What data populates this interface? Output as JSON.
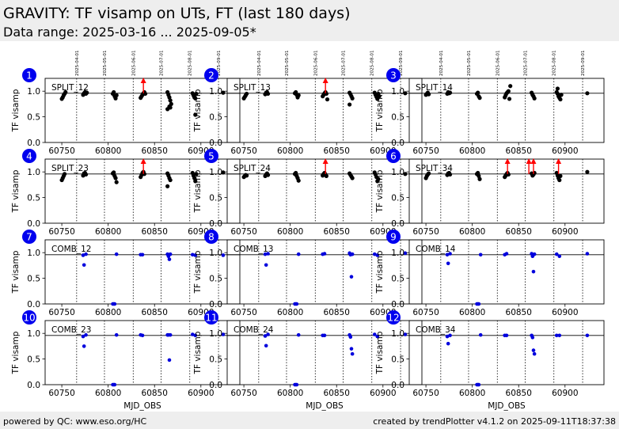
{
  "header": {
    "title": "GRAVITY: TF visamp on UTs, FT (last 180 days)",
    "subtitle": "Data range: 2025-03-16 ... 2025-09-05*"
  },
  "footer": {
    "left": "powered by QC: www.eso.org/HC",
    "right": "created by trendPlotter v4.1.2 on 2025-09-11T18:37:38"
  },
  "colors": {
    "split": "#000000",
    "comb": "#0000dd",
    "badge": "#0000ee",
    "arrow": "#ff0000"
  },
  "chart_data": {
    "type": "scatter",
    "xlabel": "MJD_OBS",
    "ylabel": "TF visamp",
    "xlim": [
      60732,
      60942
    ],
    "ylim": [
      0.0,
      1.25
    ],
    "xticks": [
      60750,
      60800,
      60850,
      60900
    ],
    "yticks": [
      0.0,
      0.5,
      1.0
    ],
    "month_lines": [
      {
        "mjd": 60766,
        "label": "2025-04-01"
      },
      {
        "mjd": 60796,
        "label": "2025-05-01"
      },
      {
        "mjd": 60827,
        "label": "2025-06-01"
      },
      {
        "mjd": 60857,
        "label": "2025-07-01"
      },
      {
        "mjd": 60888,
        "label": "2025-08-01"
      },
      {
        "mjd": 60919,
        "label": "2025-09-01"
      }
    ],
    "reference_line": 0.96,
    "panels": [
      {
        "number": "1",
        "label": "SPLIT_12",
        "kind": "split",
        "x": [
          60750,
          60751,
          60752,
          60753,
          60754,
          60773,
          60774,
          60775,
          60776,
          60777,
          60805,
          60806,
          60807,
          60808,
          60809,
          60835,
          60836,
          60837,
          60838,
          60839,
          60840,
          60864,
          60865,
          60866,
          60867,
          60868,
          60866,
          60864,
          60867,
          60891,
          60892,
          60893,
          60894,
          60895,
          60894,
          60924
        ],
        "y": [
          0.85,
          0.88,
          0.92,
          0.95,
          0.98,
          0.93,
          0.96,
          0.98,
          0.95,
          0.97,
          0.95,
          0.98,
          0.9,
          0.86,
          0.92,
          0.87,
          0.9,
          0.93,
          0.96,
          0.98,
          0.95,
          0.98,
          0.93,
          0.88,
          0.82,
          0.75,
          0.7,
          0.65,
          0.68,
          0.96,
          0.92,
          0.88,
          0.86,
          0.95,
          0.54,
          0.97
        ],
        "arrows": [
          60838
        ]
      },
      {
        "number": "2",
        "label": "SPLIT_13",
        "kind": "split",
        "x": [
          60750,
          60751,
          60752,
          60753,
          60773,
          60774,
          60775,
          60776,
          60805,
          60806,
          60807,
          60808,
          60809,
          60835,
          60836,
          60837,
          60838,
          60839,
          60840,
          60864,
          60865,
          60866,
          60867,
          60864,
          60891,
          60892,
          60893,
          60894,
          60895,
          60896,
          60924
        ],
        "y": [
          0.86,
          0.89,
          0.92,
          0.95,
          0.94,
          0.97,
          0.98,
          0.95,
          0.96,
          0.98,
          0.93,
          0.88,
          0.92,
          0.9,
          0.93,
          0.96,
          0.98,
          0.95,
          0.84,
          0.97,
          0.94,
          0.9,
          0.86,
          0.74,
          0.97,
          0.93,
          0.89,
          0.85,
          0.95,
          0.9,
          0.96
        ],
        "arrows": [
          60838
        ]
      },
      {
        "number": "3",
        "label": "SPLIT_14",
        "kind": "split",
        "x": [
          60750,
          60751,
          60752,
          60753,
          60773,
          60774,
          60775,
          60776,
          60805,
          60806,
          60807,
          60808,
          60835,
          60836,
          60837,
          60838,
          60839,
          60840,
          60841,
          60864,
          60865,
          60866,
          60867,
          60891,
          60892,
          60893,
          60894,
          60895,
          60896,
          60892,
          60924
        ],
        "y": [
          0.93,
          0.95,
          0.97,
          0.94,
          0.95,
          0.98,
          0.96,
          0.97,
          0.95,
          0.97,
          0.9,
          0.87,
          0.88,
          0.92,
          0.96,
          0.98,
          1.0,
          0.85,
          1.1,
          0.97,
          0.93,
          0.9,
          0.86,
          0.98,
          0.95,
          0.9,
          0.87,
          0.84,
          0.93,
          1.05,
          0.96
        ],
        "arrows": []
      },
      {
        "number": "4",
        "label": "SPLIT_23",
        "kind": "split",
        "x": [
          60750,
          60751,
          60752,
          60753,
          60773,
          60774,
          60775,
          60776,
          60805,
          60806,
          60807,
          60808,
          60809,
          60835,
          60836,
          60837,
          60838,
          60839,
          60864,
          60865,
          60866,
          60867,
          60864,
          60891,
          60892,
          60893,
          60894,
          60895,
          60924
        ],
        "y": [
          0.84,
          0.88,
          0.92,
          0.96,
          0.93,
          0.97,
          0.98,
          0.95,
          0.97,
          0.99,
          0.92,
          0.88,
          0.8,
          0.9,
          0.94,
          0.98,
          1.0,
          0.96,
          0.97,
          0.93,
          0.88,
          0.84,
          0.72,
          0.98,
          0.93,
          0.88,
          0.82,
          0.96,
          0.99
        ],
        "arrows": [
          60838
        ]
      },
      {
        "number": "5",
        "label": "SPLIT_24",
        "kind": "split",
        "x": [
          60750,
          60751,
          60752,
          60753,
          60773,
          60774,
          60775,
          60776,
          60805,
          60806,
          60807,
          60808,
          60809,
          60835,
          60836,
          60837,
          60838,
          60839,
          60864,
          60865,
          60866,
          60867,
          60891,
          60892,
          60893,
          60894,
          60895,
          60924
        ],
        "y": [
          0.9,
          0.92,
          0.94,
          0.93,
          0.92,
          0.95,
          0.97,
          0.94,
          0.96,
          0.98,
          0.92,
          0.88,
          0.83,
          0.93,
          0.96,
          0.98,
          0.95,
          0.92,
          0.97,
          0.94,
          0.91,
          0.88,
          0.99,
          0.95,
          0.9,
          0.82,
          0.86,
          0.96
        ],
        "arrows": [
          60838
        ]
      },
      {
        "number": "6",
        "label": "SPLIT_34",
        "kind": "split",
        "x": [
          60750,
          60751,
          60752,
          60753,
          60773,
          60774,
          60775,
          60776,
          60805,
          60806,
          60807,
          60808,
          60835,
          60836,
          60837,
          60838,
          60839,
          60864,
          60865,
          60866,
          60867,
          60891,
          60892,
          60893,
          60894,
          60895,
          60924
        ],
        "y": [
          0.88,
          0.92,
          0.95,
          0.97,
          0.94,
          0.97,
          0.98,
          0.95,
          0.96,
          0.98,
          0.92,
          0.86,
          0.9,
          0.93,
          0.96,
          0.98,
          0.95,
          0.97,
          0.93,
          0.95,
          0.98,
          0.98,
          0.93,
          0.88,
          0.84,
          0.92,
          1.0
        ],
        "arrows": [
          60838,
          60861,
          60866,
          60893
        ]
      },
      {
        "number": "7",
        "label": "COMB_12",
        "kind": "comb",
        "x": [
          60773,
          60774,
          60776,
          60805,
          60806,
          60807,
          60809,
          60835,
          60837,
          60864,
          60865,
          60866,
          60867,
          60891,
          60894,
          60924
        ],
        "y": [
          0.95,
          0.76,
          0.97,
          0.0,
          0.0,
          0.0,
          0.97,
          0.96,
          0.96,
          0.97,
          0.93,
          0.87,
          0.97,
          0.96,
          0.95,
          0.95
        ],
        "arrows": []
      },
      {
        "number": "8",
        "label": "COMB_13",
        "kind": "comb",
        "x": [
          60773,
          60774,
          60776,
          60805,
          60806,
          60807,
          60809,
          60835,
          60837,
          60864,
          60865,
          60866,
          60867,
          60891,
          60894,
          60924
        ],
        "y": [
          0.97,
          0.76,
          0.98,
          0.0,
          0.0,
          0.0,
          0.97,
          0.97,
          0.98,
          0.99,
          0.96,
          0.53,
          0.97,
          0.97,
          0.95,
          0.99
        ],
        "arrows": []
      },
      {
        "number": "9",
        "label": "COMB_14",
        "kind": "comb",
        "x": [
          60773,
          60774,
          60776,
          60805,
          60806,
          60807,
          60809,
          60835,
          60837,
          60864,
          60865,
          60866,
          60867,
          60891,
          60894,
          60924
        ],
        "y": [
          0.96,
          0.79,
          0.98,
          0.0,
          0.0,
          0.0,
          0.96,
          0.96,
          0.98,
          0.98,
          0.93,
          0.63,
          0.97,
          0.97,
          0.93,
          0.98
        ],
        "arrows": []
      },
      {
        "number": "10",
        "label": "COMB_23",
        "kind": "comb",
        "x": [
          60773,
          60774,
          60776,
          60805,
          60806,
          60807,
          60809,
          60835,
          60837,
          60864,
          60865,
          60866,
          60867,
          60891,
          60894,
          60924
        ],
        "y": [
          0.94,
          0.75,
          0.97,
          0.0,
          0.0,
          0.0,
          0.97,
          0.97,
          0.96,
          0.97,
          0.97,
          0.48,
          0.97,
          0.98,
          0.96,
          0.98
        ],
        "arrows": []
      },
      {
        "number": "11",
        "label": "COMB_24",
        "kind": "comb",
        "x": [
          60773,
          60774,
          60776,
          60805,
          60806,
          60807,
          60809,
          60835,
          60837,
          60864,
          60865,
          60866,
          60867,
          60891,
          60894,
          60924
        ],
        "y": [
          0.95,
          0.76,
          0.98,
          0.0,
          0.0,
          0.0,
          0.97,
          0.96,
          0.96,
          0.97,
          0.93,
          0.7,
          0.6,
          0.98,
          0.94,
          0.98
        ],
        "arrows": []
      },
      {
        "number": "12",
        "label": "COMB_34",
        "kind": "comb",
        "x": [
          60773,
          60774,
          60776,
          60805,
          60806,
          60807,
          60809,
          60835,
          60837,
          60864,
          60865,
          60866,
          60867,
          60891,
          60894,
          60924
        ],
        "y": [
          0.94,
          0.8,
          0.96,
          0.0,
          0.0,
          0.0,
          0.97,
          0.96,
          0.96,
          0.96,
          0.92,
          0.67,
          0.6,
          0.96,
          0.96,
          0.96
        ],
        "arrows": []
      }
    ]
  }
}
